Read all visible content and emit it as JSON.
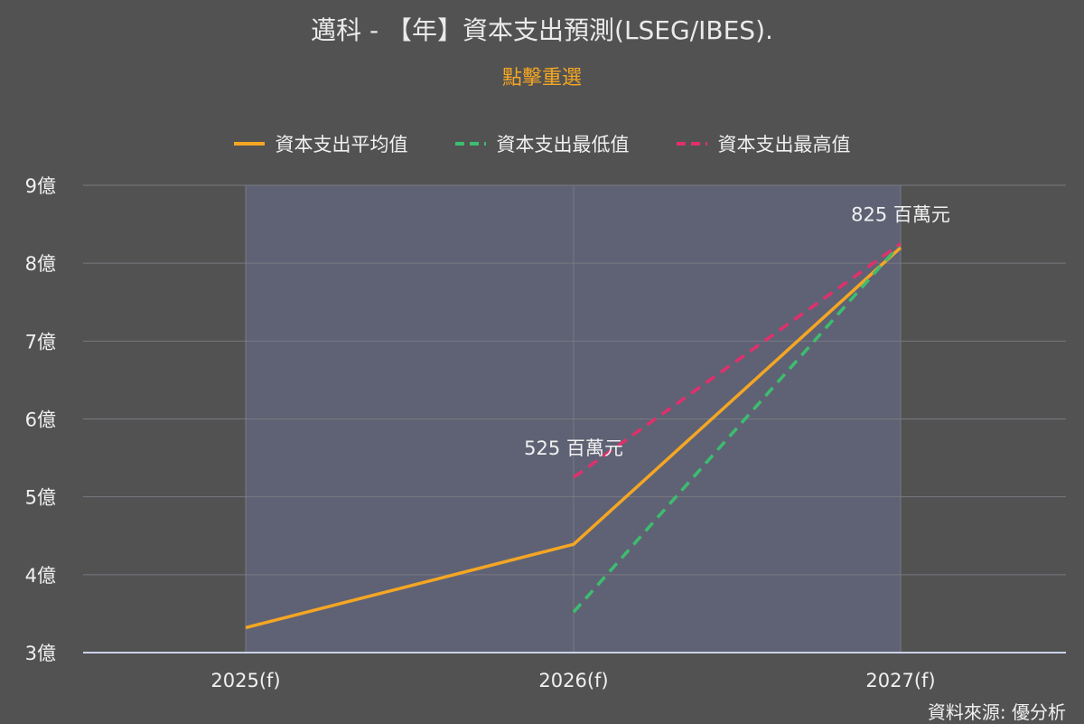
{
  "title": "邁科 - 【年】資本支出預測(LSEG/IBES).",
  "subtitle": "點擊重選",
  "source": "資料來源: 優分析",
  "colors": {
    "background": "#525252",
    "plot_band": "#5f6274",
    "grid": "#777a80",
    "average": "#f5a623",
    "low": "#3dbd6f",
    "high": "#e0306c",
    "subtitle": "#f5a623"
  },
  "chart_data": {
    "type": "line",
    "title": "邁科 - 【年】資本支出預測(LSEG/IBES).",
    "categories": [
      "2025(f)",
      "2026(f)",
      "2027(f)"
    ],
    "ylim": [
      3,
      9
    ],
    "yticks": [
      3,
      4,
      5,
      6,
      7,
      8,
      9
    ],
    "ytick_labels": [
      "3億",
      "4億",
      "5億",
      "6億",
      "7億",
      "8億",
      "9億"
    ],
    "legend_position": "top-center",
    "grid": true,
    "series": [
      {
        "name": "資本支出平均值",
        "style": "solid",
        "values": [
          3.32,
          4.39,
          8.2
        ]
      },
      {
        "name": "資本支出最低值",
        "style": "dashed",
        "values": [
          null,
          3.52,
          8.25
        ]
      },
      {
        "name": "資本支出最高值",
        "style": "dashed",
        "values": [
          null,
          5.25,
          8.25
        ]
      }
    ],
    "annotations": [
      {
        "category": "2026(f)",
        "y": 5.25,
        "text": "525 百萬元"
      },
      {
        "category": "2027(f)",
        "y": 8.25,
        "text": "825 百萬元"
      }
    ]
  }
}
